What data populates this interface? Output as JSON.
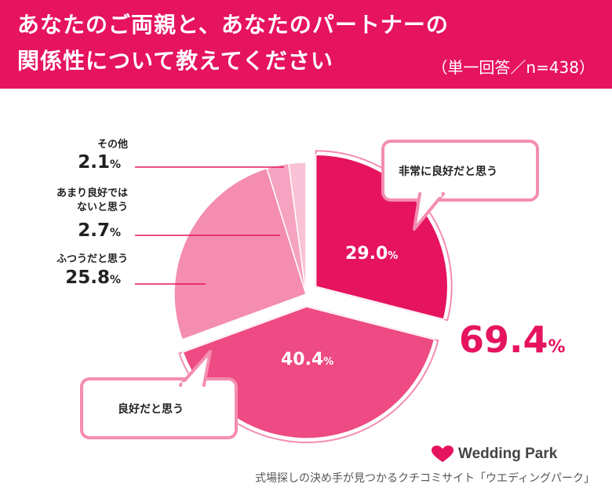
{
  "header": {
    "title_line1": "あなたのご両親と、あなたのパートナーの",
    "title_line2": "関係性について教えてください",
    "note": "（単一回答／n=438）"
  },
  "chart_data": {
    "type": "pie",
    "slices": [
      {
        "label": "非常に良好だと思う",
        "value": 29.0,
        "display": "29.0",
        "color": "#e6135f",
        "exploded": true
      },
      {
        "label": "良好だと思う",
        "value": 40.4,
        "display": "40.4",
        "color": "#ee4a84",
        "exploded": true
      },
      {
        "label": "ふつうだと思う",
        "value": 25.8,
        "display": "25.8",
        "color": "#f48db0",
        "exploded": false
      },
      {
        "label": "あまり良好ではないと思う",
        "value": 2.7,
        "display": "2.7",
        "color": "#f6a3c1",
        "exploded": false
      },
      {
        "label": "その他",
        "value": 2.1,
        "display": "2.1",
        "color": "#f9c2d6",
        "exploded": false
      }
    ],
    "percent_symbol": "%",
    "combined_total": "69.4"
  },
  "labels": {
    "other_name": "その他",
    "not_good_line1": "あまり良好では",
    "not_good_line2": "ないと思う",
    "normal_name": "ふつうだと思う",
    "very_good_bubble": "非常に良好だと思う",
    "good_bubble": "良好だと思う"
  },
  "brand": {
    "logo_text": "Wedding Park",
    "logo_color": "#e6135f",
    "tagline": "式場探しの決め手が見つかるクチコミサイト「ウエディングパーク」"
  }
}
